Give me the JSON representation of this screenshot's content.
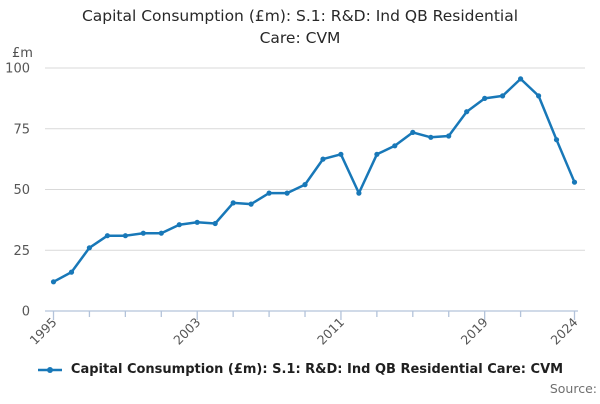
{
  "title": {
    "full": "Capital Consumption (£m): S.1: R&D: Ind QB Residential Care: CVM",
    "line1": "Capital Consumption (£m): S.1: R&D: Ind QB Residential",
    "line2": "Care: CVM"
  },
  "unit_label": "£m",
  "legend": {
    "label": "Capital Consumption (£m): S.1: R&D: Ind QB Residential Care: CVM"
  },
  "source": {
    "label": "Source:"
  },
  "colors": {
    "line": "#1878b8",
    "grid": "#d9d9d9",
    "axis": "#b3c3da",
    "tick_label": "#565656",
    "title": "#282828",
    "source": "#707070"
  },
  "chart_data": {
    "type": "line",
    "title": "Capital Consumption (£m): S.1: R&D: Ind QB Residential Care: CVM",
    "ylabel": "£m",
    "xlabel": "",
    "x": [
      1995,
      1996,
      1997,
      1998,
      1999,
      2000,
      2001,
      2002,
      2003,
      2004,
      2005,
      2006,
      2007,
      2008,
      2009,
      2010,
      2011,
      2012,
      2013,
      2014,
      2015,
      2016,
      2017,
      2018,
      2019,
      2020,
      2021,
      2022,
      2023,
      2024
    ],
    "values": [
      12,
      16,
      26,
      31,
      31,
      32,
      32,
      35.5,
      36.5,
      36,
      44.5,
      44,
      48.5,
      48.5,
      52,
      62.5,
      64.5,
      48.5,
      64.5,
      68,
      73.5,
      71.5,
      72,
      82,
      87.5,
      88.5,
      95.5,
      88.5,
      70.5,
      53
    ],
    "ylim": [
      0,
      100
    ],
    "yticks": [
      0,
      25,
      50,
      75,
      100
    ],
    "xticks": [
      1995,
      1997,
      1999,
      2001,
      2003,
      2005,
      2007,
      2009,
      2011,
      2013,
      2015,
      2017,
      2019,
      2021,
      2024
    ],
    "xtick_labels": [
      1995,
      2003,
      2011,
      2019,
      2024
    ],
    "grid": "horizontal",
    "legend_position": "bottom",
    "marker": "point"
  }
}
